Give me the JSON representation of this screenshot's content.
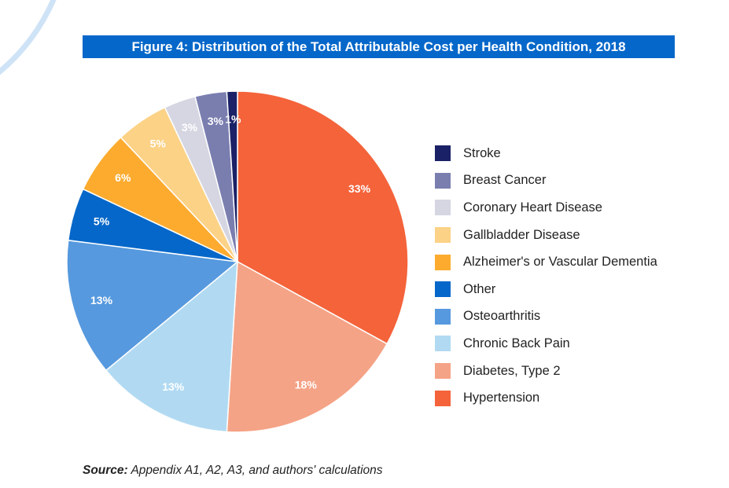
{
  "figure": {
    "title": "Figure 4: Distribution of the Total Attributable Cost per Health Condition, 2018"
  },
  "source": {
    "prefix": "Source:",
    "text": "Appendix A1, A2, A3, and authors' calculations"
  },
  "chart_data": {
    "type": "pie",
    "title": "Figure 4: Distribution of the Total Attributable Cost per Health Condition, 2018",
    "legend_position": "right",
    "slices": [
      {
        "name": "Hypertension",
        "value": 33,
        "label": "33%",
        "color": "#f4633a",
        "label_color": "#ffffff"
      },
      {
        "name": "Diabetes, Type 2",
        "value": 18,
        "label": "18%",
        "color": "#f5a386",
        "label_color": "#ffffff"
      },
      {
        "name": "Chronic Back Pain",
        "value": 13,
        "label": "13%",
        "color": "#b1daf2",
        "label_color": "#ffffff"
      },
      {
        "name": "Osteoarthritis",
        "value": 13,
        "label": "13%",
        "color": "#5699de",
        "label_color": "#ffffff"
      },
      {
        "name": "Other",
        "value": 5,
        "label": "5%",
        "color": "#0567c9",
        "label_color": "#ffffff"
      },
      {
        "name": "Alzheimer's or Vascular Dementia",
        "value": 6,
        "label": "6%",
        "color": "#fcab2f",
        "label_color": "#ffffff"
      },
      {
        "name": "Gallbladder Disease",
        "value": 5,
        "label": "5%",
        "color": "#fcd287",
        "label_color": "#ffffff"
      },
      {
        "name": "Coronary Heart Disease",
        "value": 3,
        "label": "3%",
        "color": "#d5d6e2",
        "label_color": "#ffffff"
      },
      {
        "name": "Breast Cancer",
        "value": 3,
        "label": "3%",
        "color": "#7a7eaf",
        "label_color": "#ffffff"
      },
      {
        "name": "Stroke",
        "value": 1,
        "label": "1%",
        "color": "#1b2166",
        "label_color": "#ffffff"
      }
    ],
    "legend": [
      {
        "label": "Stroke",
        "color": "#1b2166"
      },
      {
        "label": "Breast Cancer",
        "color": "#7a7eaf"
      },
      {
        "label": "Coronary Heart Disease",
        "color": "#d5d6e2"
      },
      {
        "label": "Gallbladder Disease",
        "color": "#fcd287"
      },
      {
        "label": "Alzheimer's or Vascular Dementia",
        "color": "#fcab2f"
      },
      {
        "label": "Other",
        "color": "#0567c9"
      },
      {
        "label": "Osteoarthritis",
        "color": "#5699de"
      },
      {
        "label": "Chronic Back Pain",
        "color": "#b1daf2"
      },
      {
        "label": "Diabetes, Type 2",
        "color": "#f5a386"
      },
      {
        "label": "Hypertension",
        "color": "#f4633a"
      }
    ]
  },
  "decoration": {
    "arc_color": "#cfe3f7"
  }
}
